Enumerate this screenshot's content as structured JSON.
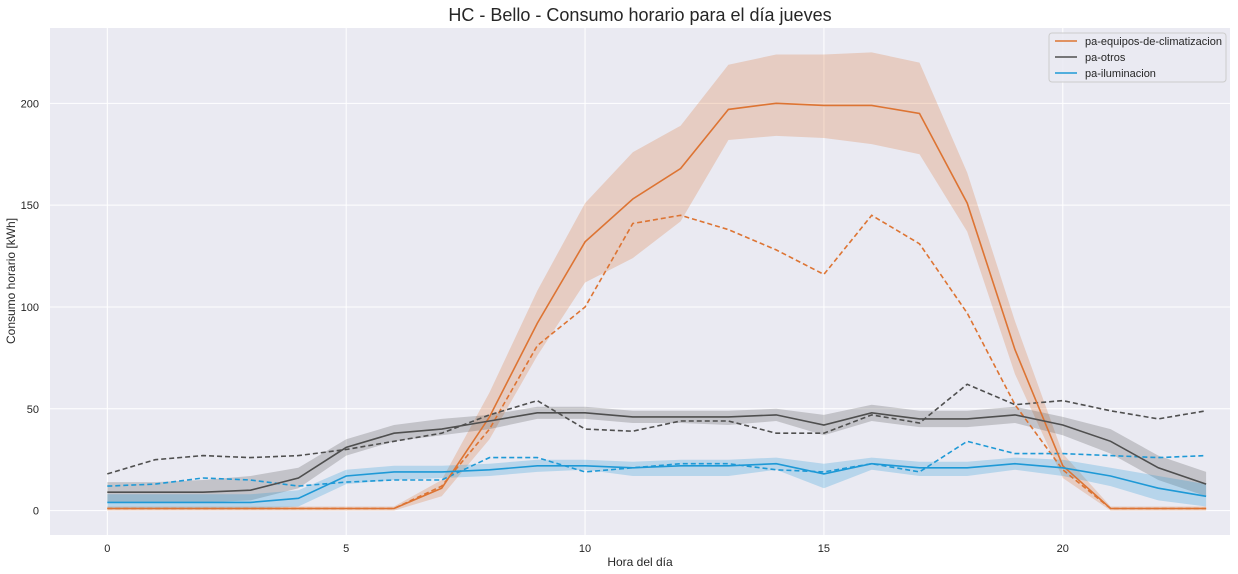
{
  "chart_data": {
    "type": "line",
    "title": "HC - Bello - Consumo horario para el día jueves",
    "xlabel": "Hora del día",
    "ylabel": "Consumo horario [kWh]",
    "xlim": [
      -1.2,
      23.5
    ],
    "ylim": [
      -12,
      237
    ],
    "xticks": [
      0,
      5,
      10,
      15,
      20
    ],
    "yticks": [
      0,
      50,
      100,
      150,
      200
    ],
    "grid": true,
    "legend_position": "top-right",
    "x": [
      0,
      1,
      2,
      3,
      4,
      5,
      6,
      7,
      8,
      9,
      10,
      11,
      12,
      13,
      14,
      15,
      16,
      17,
      18,
      19,
      20,
      21,
      22,
      23
    ],
    "series": [
      {
        "name": "pa-equipos-de-climatizacion",
        "color": "#dd7433",
        "mean": [
          1,
          1,
          1,
          1,
          1,
          1,
          1,
          11,
          46,
          92,
          132,
          153,
          168,
          197,
          200,
          199,
          199,
          195,
          151,
          79,
          22,
          1,
          1,
          1
        ],
        "lower": [
          0,
          0,
          0,
          0,
          0,
          0,
          0,
          7,
          35,
          76,
          112,
          124,
          142,
          182,
          184,
          183,
          180,
          175,
          137,
          67,
          16,
          0,
          0,
          0
        ],
        "upper": [
          2,
          2,
          2,
          2,
          2,
          2,
          2,
          15,
          58,
          108,
          151,
          176,
          189,
          219,
          224,
          224,
          225,
          220,
          166,
          93,
          28,
          2,
          2,
          2
        ],
        "dashed": [
          1,
          1,
          1,
          1,
          1,
          1,
          1,
          12,
          40,
          81,
          100,
          141,
          145,
          138,
          128,
          116,
          145,
          131,
          97,
          52,
          20,
          1,
          1,
          1
        ]
      },
      {
        "name": "pa-otros",
        "color": "#4f4f4f",
        "mean": [
          9,
          9,
          9,
          10,
          16,
          31,
          38,
          40,
          44,
          48,
          48,
          46,
          46,
          46,
          47,
          42,
          48,
          45,
          45,
          47,
          42,
          34,
          21,
          13
        ],
        "lower": [
          4,
          4,
          4,
          5,
          11,
          27,
          34,
          37,
          40,
          45,
          45,
          43,
          43,
          42,
          44,
          37,
          44,
          41,
          41,
          43,
          37,
          28,
          15,
          7
        ],
        "upper": [
          14,
          14,
          15,
          17,
          21,
          35,
          42,
          45,
          47,
          51,
          51,
          49,
          49,
          49,
          50,
          47,
          52,
          49,
          49,
          51,
          46,
          40,
          27,
          19
        ],
        "dashed": [
          18,
          25,
          27,
          26,
          27,
          30,
          34,
          38,
          47,
          54,
          40,
          39,
          44,
          44,
          38,
          38,
          47,
          43,
          62,
          52,
          54,
          49,
          45,
          49
        ]
      },
      {
        "name": "pa-iluminacion",
        "color": "#1e99d6",
        "mean": [
          4,
          4,
          4,
          4,
          6,
          17,
          19,
          19,
          20,
          22,
          22,
          21,
          22,
          22,
          23,
          18,
          23,
          21,
          21,
          23,
          21,
          17,
          11,
          7
        ],
        "lower": [
          1,
          1,
          1,
          1,
          2,
          13,
          15,
          16,
          17,
          19,
          20,
          17,
          17,
          17,
          20,
          11,
          20,
          17,
          17,
          20,
          17,
          12,
          5,
          2
        ],
        "upper": [
          8,
          8,
          8,
          8,
          10,
          20,
          22,
          22,
          23,
          25,
          25,
          24,
          25,
          25,
          26,
          23,
          26,
          24,
          24,
          26,
          25,
          21,
          17,
          13
        ],
        "dashed": [
          12,
          13,
          16,
          15,
          12,
          14,
          15,
          15,
          26,
          26,
          19,
          21,
          23,
          23,
          20,
          19,
          23,
          19,
          34,
          28,
          28,
          27,
          26,
          27
        ]
      }
    ]
  }
}
